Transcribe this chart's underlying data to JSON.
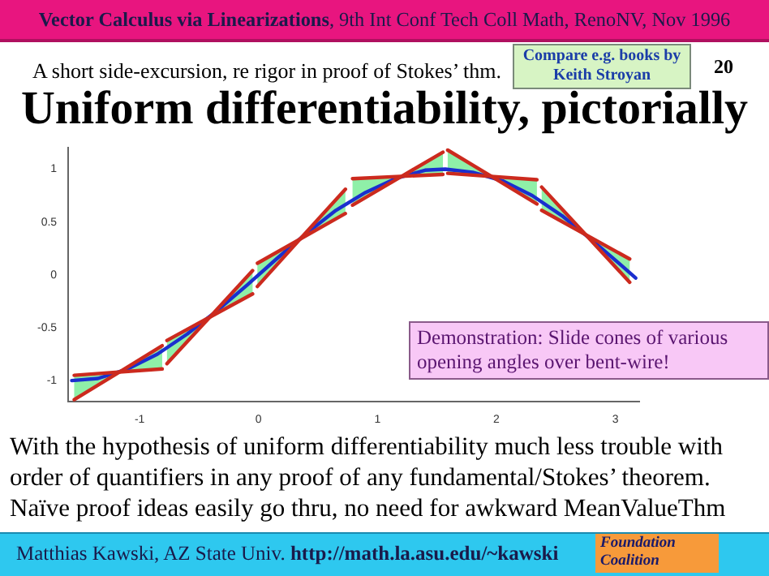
{
  "chart_data": {
    "type": "line",
    "title": "Uniform differentiability, pictorially",
    "subtitle": "A short side-excursion, re rigor in proof of Stokes’ thm.",
    "annotations": [
      "Vector Calculus via Linearizations, 9th Int Conf Tech Coll Math, RenoNV, Nov 1996",
      "Compare e.g. books by Keith Stroyan",
      "20",
      "Demonstration: Slide cones of various opening angles over bent-wire!",
      "With the hypothesis of uniform differentiability much less trouble with order of quantifiers in any proof of any fundamental/Stokes’ theorem. Naïve proof ideas easily go thru, no need for awkward MeanValueThm",
      "Matthias Kawski, AZ State Univ. http://math.la.asu.edu/~kawski",
      "Foundation Coalition"
    ],
    "series": [
      {
        "color": "#cc2a1e",
        "x": [
          -1.55,
          -1.17,
          -0.81
        ],
        "values": [
          -1.18,
          -0.92,
          -0.67
        ],
        "lower": [
          -1.18,
          -0.92,
          -0.89
        ],
        "upper": [
          -0.95,
          -0.92,
          -0.67
        ]
      },
      {
        "color": "#cc2a1e",
        "x": [
          -1.55,
          -0.81
        ],
        "values": [
          -0.95,
          -0.89
        ]
      },
      {
        "color": "#cc2a1e",
        "x": [
          -0.77,
          -0.41,
          -0.05
        ],
        "values": [
          -0.84,
          -0.4,
          0.04
        ],
        "lower": [
          -0.84,
          -0.4,
          -0.18
        ],
        "upper": [
          -0.62,
          -0.4,
          0.04
        ]
      },
      {
        "color": "#cc2a1e",
        "x": [
          -0.77,
          -0.05
        ],
        "values": [
          -0.62,
          -0.18
        ]
      },
      {
        "color": "#cc2a1e",
        "x": [
          -0.01,
          0.35,
          0.73
        ],
        "values": [
          -0.11,
          0.34,
          0.81
        ],
        "lower": [
          -0.11,
          0.34,
          0.58
        ],
        "upper": [
          0.11,
          0.34,
          0.81
        ]
      },
      {
        "color": "#cc2a1e",
        "x": [
          -0.01,
          0.73
        ],
        "values": [
          0.11,
          0.58
        ]
      },
      {
        "color": "#cc2a1e",
        "x": [
          0.79,
          1.2,
          1.55
        ],
        "values": [
          0.66,
          0.93,
          1.16
        ],
        "lower": [
          0.66,
          0.93,
          0.95
        ],
        "upper": [
          0.91,
          0.93,
          1.16
        ]
      },
      {
        "color": "#cc2a1e",
        "x": [
          0.79,
          1.55
        ],
        "values": [
          0.91,
          0.95
        ]
      },
      {
        "color": "#cc2a1e",
        "x": [
          1.59,
          1.96,
          2.34
        ],
        "values": [
          1.18,
          0.93,
          0.67
        ],
        "lower": [
          0.96,
          0.93,
          0.67
        ],
        "upper": [
          1.18,
          0.93,
          0.9
        ]
      },
      {
        "color": "#cc2a1e",
        "x": [
          1.59,
          2.34
        ],
        "values": [
          0.96,
          0.9
        ]
      },
      {
        "color": "#cc2a1e",
        "x": [
          2.38,
          2.75,
          3.12
        ],
        "values": [
          0.83,
          0.38,
          -0.07
        ],
        "lower": [
          0.61,
          0.38,
          -0.07
        ],
        "upper": [
          0.83,
          0.38,
          0.15
        ]
      },
      {
        "color": "#cc2a1e",
        "x": [
          2.38,
          3.12
        ],
        "values": [
          0.61,
          0.15
        ]
      },
      {
        "color": "#1a2fcf",
        "x": [
          -1.57,
          -1.35,
          -1.1,
          -0.85,
          -0.6,
          -0.35,
          -0.1,
          0.15,
          0.4,
          0.65,
          0.9,
          1.15,
          1.4,
          1.57,
          1.8,
          2.05,
          2.3,
          2.55,
          2.8,
          3.05,
          3.17
        ],
        "values": [
          -1,
          -0.98,
          -0.89,
          -0.75,
          -0.56,
          -0.34,
          -0.1,
          0.15,
          0.39,
          0.61,
          0.78,
          0.91,
          0.99,
          1,
          0.97,
          0.89,
          0.75,
          0.56,
          0.33,
          0.09,
          -0.03
        ]
      }
    ],
    "xlim": [
      -1.6,
      3.2
    ],
    "xticks": [
      -1,
      0,
      1,
      2,
      3
    ],
    "ylim": [
      -1.2,
      1.2
    ],
    "yticks": [
      -1,
      -0.5,
      0,
      0.5,
      1
    ],
    "grid": false,
    "legend": false,
    "marker": "none",
    "line_style": "solid"
  }
}
